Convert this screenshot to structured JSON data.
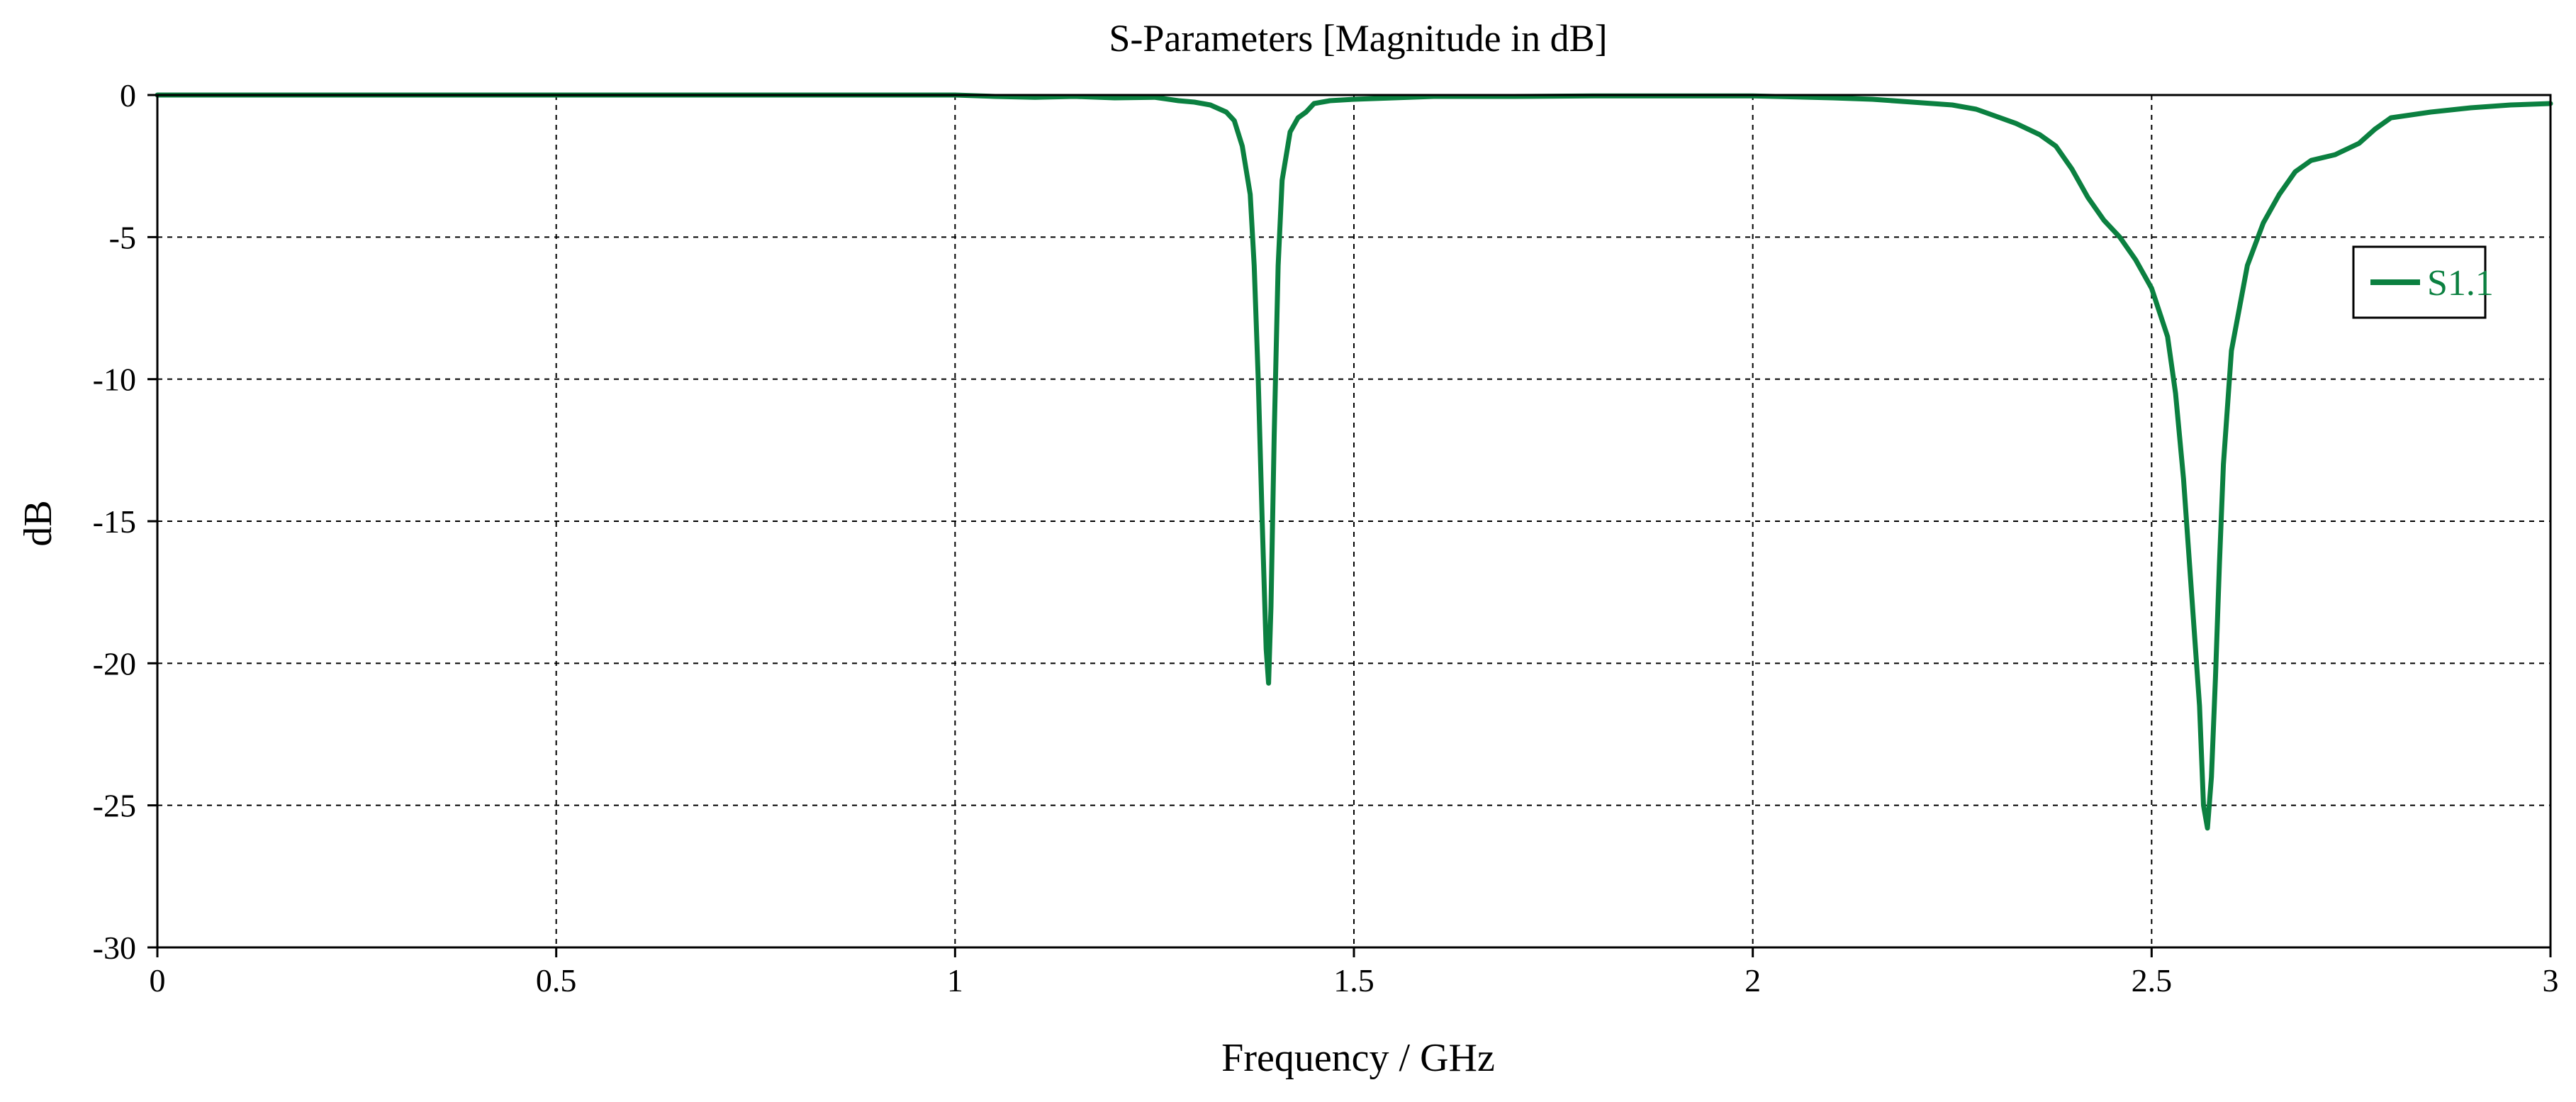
{
  "chart_data": {
    "type": "line",
    "title": "S-Parameters [Magnitude in dB]",
    "xlabel": "Frequency / GHz",
    "ylabel": "dB",
    "xlim": [
      0,
      3
    ],
    "ylim": [
      -30,
      0
    ],
    "x_ticks": [
      0,
      0.5,
      1,
      1.5,
      2,
      2.5,
      3
    ],
    "x_tick_labels": [
      "0",
      "0.5",
      "1",
      "1.5",
      "2",
      "2.5",
      "3"
    ],
    "y_ticks": [
      0,
      -5,
      -10,
      -15,
      -20,
      -25,
      -30
    ],
    "y_tick_labels": [
      "0",
      "-5",
      "-10",
      "-15",
      "-20",
      "-25",
      "-30"
    ],
    "grid": true,
    "legend_position": "right",
    "series": [
      {
        "name": "S1.1",
        "color": "#0b8040",
        "x": [
          0,
          0.2,
          0.4,
          0.6,
          0.8,
          1.0,
          1.05,
          1.1,
          1.15,
          1.2,
          1.25,
          1.28,
          1.3,
          1.32,
          1.34,
          1.35,
          1.36,
          1.37,
          1.375,
          1.38,
          1.385,
          1.39,
          1.393,
          1.396,
          1.4,
          1.405,
          1.41,
          1.42,
          1.43,
          1.44,
          1.45,
          1.47,
          1.5,
          1.55,
          1.6,
          1.7,
          1.8,
          1.9,
          2.0,
          2.1,
          2.15,
          2.2,
          2.25,
          2.28,
          2.3,
          2.33,
          2.36,
          2.38,
          2.4,
          2.42,
          2.44,
          2.46,
          2.48,
          2.5,
          2.52,
          2.53,
          2.54,
          2.55,
          2.56,
          2.565,
          2.57,
          2.575,
          2.58,
          2.585,
          2.59,
          2.6,
          2.62,
          2.64,
          2.66,
          2.68,
          2.7,
          2.73,
          2.76,
          2.78,
          2.8,
          2.85,
          2.9,
          2.95,
          3.0
        ],
        "y": [
          0,
          0,
          0,
          0,
          0,
          0,
          -0.05,
          -0.08,
          -0.05,
          -0.1,
          -0.08,
          -0.2,
          -0.25,
          -0.35,
          -0.6,
          -0.9,
          -1.8,
          -3.5,
          -6,
          -10,
          -15,
          -19.5,
          -20.7,
          -18,
          -12,
          -6,
          -3,
          -1.3,
          -0.8,
          -0.6,
          -0.3,
          -0.2,
          -0.15,
          -0.1,
          -0.05,
          -0.05,
          -0.03,
          -0.03,
          -0.03,
          -0.1,
          -0.15,
          -0.25,
          -0.35,
          -0.5,
          -0.7,
          -1.0,
          -1.4,
          -1.8,
          -2.6,
          -3.6,
          -4.4,
          -5.0,
          -5.8,
          -6.8,
          -8.5,
          -10.5,
          -13.5,
          -17.5,
          -21.5,
          -25,
          -25.8,
          -24,
          -20.5,
          -16.5,
          -13,
          -9,
          -6,
          -4.5,
          -3.5,
          -2.7,
          -2.3,
          -2.1,
          -1.7,
          -1.2,
          -0.8,
          -0.6,
          -0.45,
          -0.35,
          -0.3
        ]
      }
    ]
  }
}
